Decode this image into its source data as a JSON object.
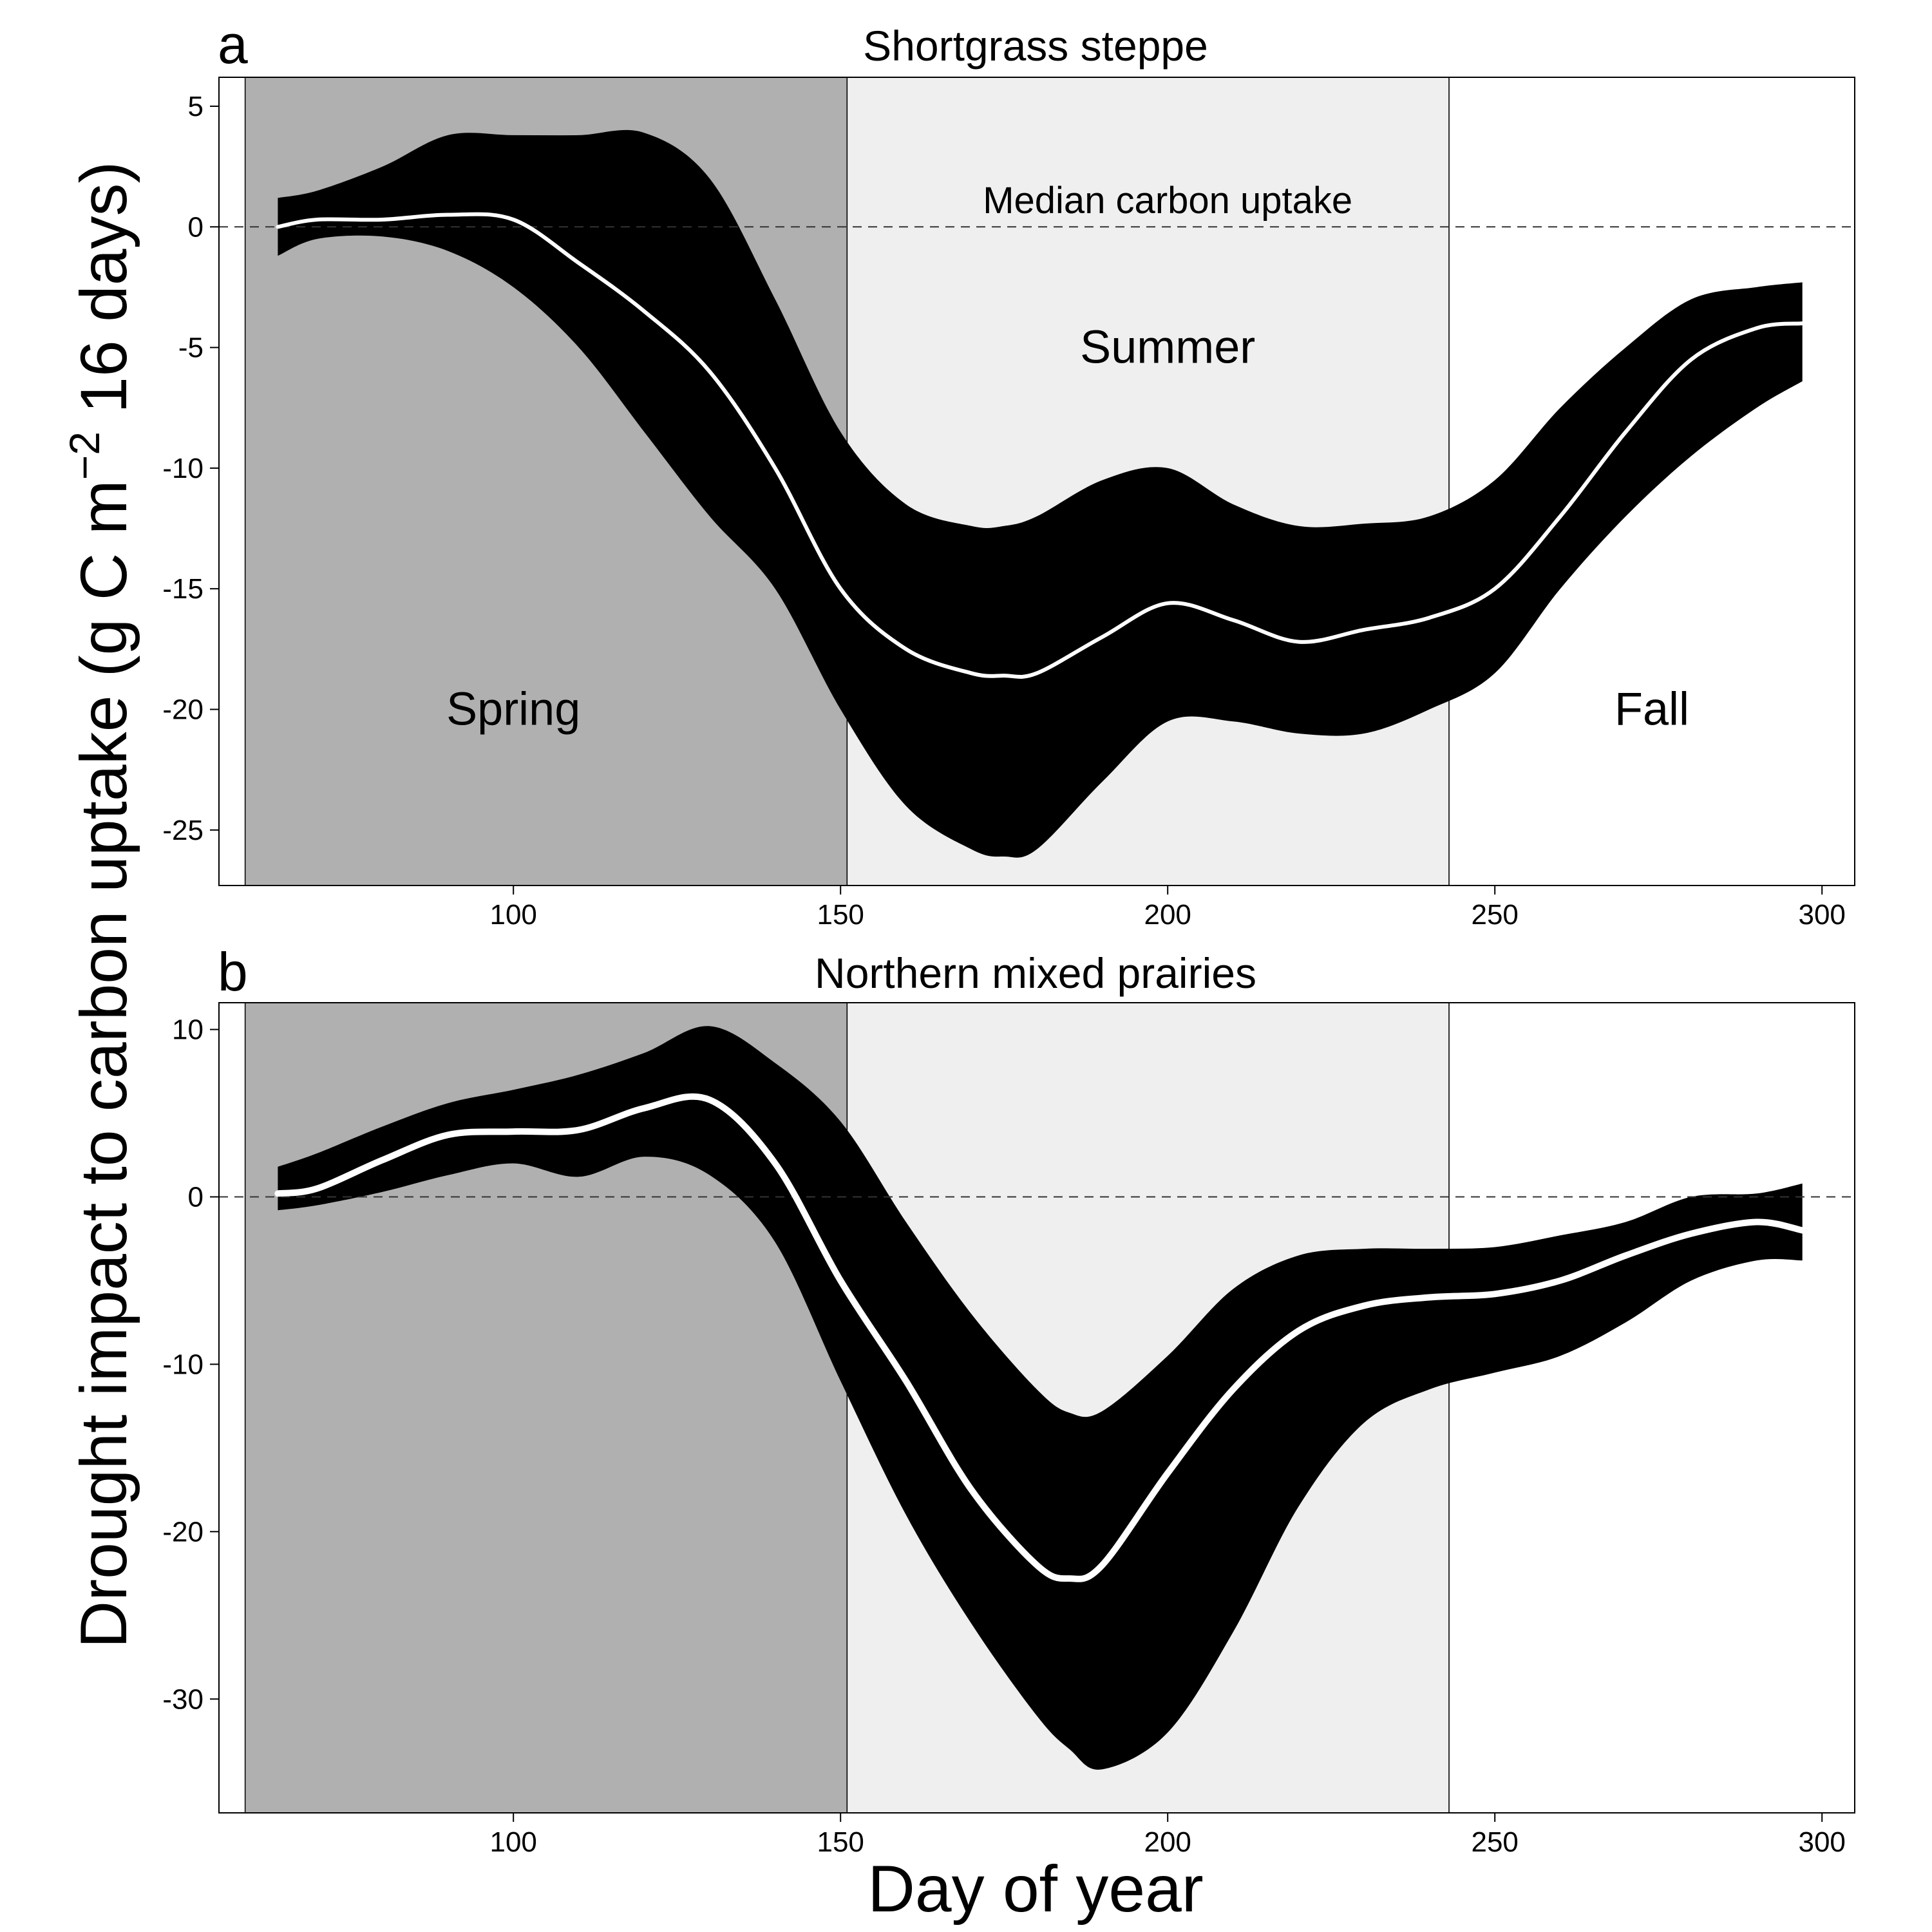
{
  "figure": {
    "ylabel_parts": {
      "main": "Drought impact to carbon uptake (g C m",
      "sup": "−2",
      "tail": " 16 days)"
    },
    "xlabel": "Day of year"
  },
  "colors": {
    "spring": "#b0b0b0",
    "summer": "#efefef",
    "fall": "#ffffff",
    "band": "#000000",
    "median": "#ffffff"
  },
  "chart_data": [
    {
      "type": "area",
      "panel_letter": "a",
      "title": "Shortgrass steppe",
      "xlabel": "Day of year",
      "xlim": [
        55,
        305
      ],
      "ylim": [
        -27.3,
        6.2
      ],
      "xticks": [
        100,
        150,
        200,
        250,
        300
      ],
      "yticks": [
        5,
        0,
        -5,
        -10,
        -15,
        -20,
        -25
      ],
      "grid": false,
      "legend": "none",
      "seasons": [
        {
          "name": "Spring",
          "start": 59,
          "end": 151,
          "label_pos": [
            100,
            -20
          ]
        },
        {
          "name": "Summer",
          "start": 151,
          "end": 243,
          "label_pos": [
            200,
            -5
          ]
        },
        {
          "name": "Fall",
          "start": 243,
          "end": 305,
          "label_pos": [
            274,
            -20
          ]
        }
      ],
      "reference_line": {
        "y": 0,
        "style": "dashed",
        "label": "Median carbon uptake",
        "label_pos": [
          200,
          1.1
        ]
      },
      "series": [
        {
          "name": "",
          "x": [
            64,
            70,
            80,
            90,
            100,
            110,
            120,
            130,
            140,
            150,
            160,
            170,
            175,
            180,
            190,
            200,
            210,
            220,
            230,
            240,
            250,
            260,
            270,
            280,
            290,
            297
          ],
          "y": [
            0,
            0.3,
            0.3,
            0.5,
            0.3,
            -1.5,
            -3.5,
            -6,
            -10,
            -15,
            -17.5,
            -18.5,
            -18.6,
            -18.5,
            -17,
            -15.6,
            -16.3,
            -17.2,
            -16.7,
            -16.2,
            -15,
            -12,
            -8.5,
            -5.5,
            -4.2,
            -4
          ]
        }
      ],
      "band": {
        "x": [
          64,
          70,
          80,
          90,
          100,
          110,
          120,
          130,
          140,
          150,
          160,
          170,
          175,
          180,
          190,
          200,
          210,
          220,
          230,
          240,
          250,
          260,
          270,
          280,
          290,
          297
        ],
        "upper": [
          1.2,
          1.5,
          2.5,
          3.8,
          3.8,
          3.8,
          3.9,
          2,
          -3,
          -8.5,
          -11.5,
          -12.4,
          -12.4,
          -12,
          -10.5,
          -10,
          -11.5,
          -12.4,
          -12.3,
          -12,
          -10.5,
          -7.5,
          -5,
          -3,
          -2.5,
          -2.3
        ],
        "lower": [
          -1.2,
          -0.5,
          -0.4,
          -1,
          -2.5,
          -5,
          -8.5,
          -12,
          -15,
          -20,
          -24,
          -25.8,
          -26.1,
          -25.8,
          -23,
          -20.5,
          -20.5,
          -21,
          -21,
          -20,
          -18.5,
          -15,
          -12,
          -9.5,
          -7.5,
          -6.4
        ]
      }
    },
    {
      "type": "area",
      "panel_letter": "b",
      "title": "Northern mixed prairies",
      "xlabel": "Day of year",
      "xlim": [
        55,
        305
      ],
      "ylim": [
        -36.8,
        11.6
      ],
      "xticks": [
        100,
        150,
        200,
        250,
        300
      ],
      "yticks": [
        10,
        0,
        -10,
        -20,
        -30
      ],
      "grid": false,
      "legend": "none",
      "seasons": [
        {
          "name": "Spring",
          "start": 59,
          "end": 151
        },
        {
          "name": "Summer",
          "start": 151,
          "end": 243
        },
        {
          "name": "Fall",
          "start": 243,
          "end": 305
        }
      ],
      "reference_line": {
        "y": 0,
        "style": "dashed"
      },
      "series": [
        {
          "name": "",
          "x": [
            64,
            70,
            80,
            90,
            100,
            110,
            120,
            130,
            140,
            150,
            160,
            170,
            180,
            185,
            190,
            200,
            210,
            220,
            230,
            240,
            250,
            260,
            270,
            280,
            290,
            297
          ],
          "y": [
            0.2,
            0.5,
            2.2,
            3.7,
            3.9,
            4,
            5.3,
            5.8,
            2,
            -5,
            -11,
            -17.5,
            -22,
            -22.8,
            -22,
            -16.5,
            -11.5,
            -8,
            -6.5,
            -6,
            -5.8,
            -5,
            -3.5,
            -2.2,
            -1.5,
            -2
          ]
        }
      ],
      "band": {
        "x": [
          64,
          70,
          80,
          90,
          100,
          110,
          120,
          130,
          140,
          150,
          160,
          170,
          180,
          185,
          190,
          200,
          210,
          220,
          230,
          240,
          250,
          260,
          270,
          280,
          290,
          297
        ],
        "upper": [
          1.8,
          2.6,
          4.2,
          5.6,
          6.4,
          7.3,
          8.6,
          10.2,
          8,
          4.5,
          -1.5,
          -7,
          -11.5,
          -12.9,
          -12.8,
          -9.5,
          -5.5,
          -3.5,
          -3.1,
          -3.1,
          -3,
          -2.3,
          -1.5,
          0,
          0.2,
          0.8
        ],
        "lower": [
          -0.8,
          -0.5,
          0.3,
          1.3,
          2,
          1.2,
          2.4,
          1.3,
          -2.7,
          -11,
          -19,
          -25.5,
          -31,
          -33,
          -34.2,
          -32,
          -26,
          -18.5,
          -13.5,
          -11.5,
          -10.5,
          -9.5,
          -7.5,
          -5,
          -3.8,
          -3.8
        ]
      }
    }
  ]
}
